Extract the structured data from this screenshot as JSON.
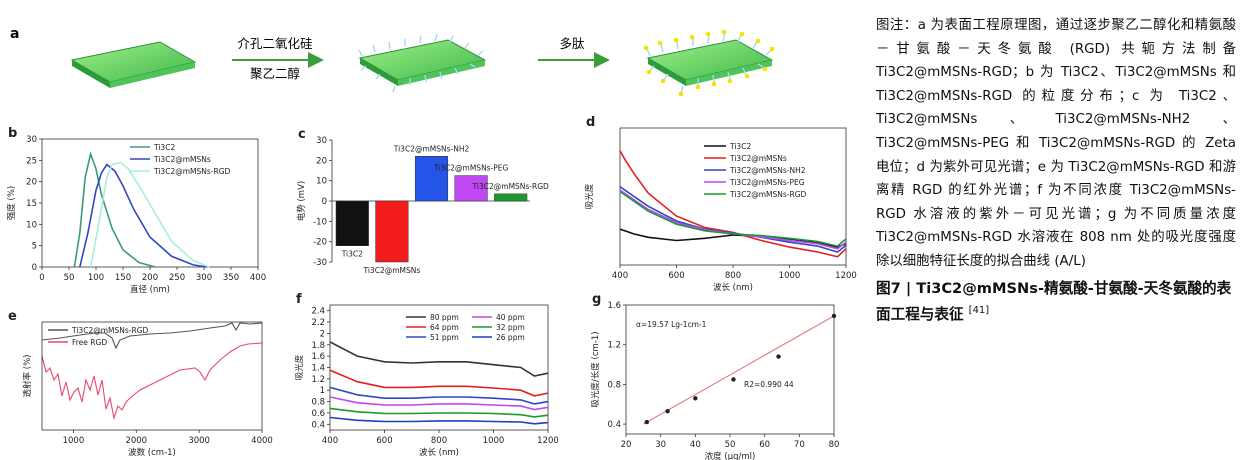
{
  "panel_a": {
    "letter": "a",
    "step1_top": "介孔二氧化硅",
    "step1_bottom": "聚乙二醇",
    "step2_top": "多肽"
  },
  "chart_data": [
    {
      "id": "b",
      "type": "line",
      "letter": "b",
      "xlabel": "直径 (nm)",
      "ylabel": "强度 (%)",
      "xlim": [
        0,
        400
      ],
      "ylim": [
        0,
        30
      ],
      "xticks": [
        0,
        50,
        100,
        150,
        200,
        250,
        300,
        350,
        400
      ],
      "yticks": [
        0,
        5,
        10,
        15,
        20,
        25,
        30
      ],
      "legend_position": "top-right",
      "series": [
        {
          "name": "Ti3C2",
          "color": "#3a9b7a",
          "x": [
            60,
            70,
            80,
            90,
            100,
            110,
            130,
            150,
            180,
            210
          ],
          "y": [
            0,
            8,
            21,
            26.5,
            23,
            17,
            9,
            4,
            1,
            0
          ]
        },
        {
          "name": "Ti3C2@mMSNs",
          "color": "#3045c8",
          "x": [
            70,
            85,
            100,
            110,
            120,
            135,
            150,
            170,
            200,
            240,
            280,
            305
          ],
          "y": [
            0,
            8,
            18,
            22,
            24,
            22.5,
            19,
            13.5,
            7,
            2.5,
            0.5,
            0
          ]
        },
        {
          "name": "Ti3C2@mMSNs-RGD",
          "color": "#a8eed8",
          "x": [
            90,
            105,
            120,
            130,
            145,
            160,
            180,
            210,
            240,
            280,
            310
          ],
          "y": [
            0,
            10,
            21,
            24,
            24.5,
            23,
            19,
            12.5,
            6,
            1.5,
            0
          ]
        }
      ]
    },
    {
      "id": "c",
      "type": "bar",
      "letter": "c",
      "ylabel": "电势 (mV)",
      "ylim": [
        -30,
        30
      ],
      "yticks": [
        -30,
        -20,
        -10,
        0,
        10,
        20,
        30
      ],
      "categories": [
        "Ti3C2",
        "Ti3C2@mMSNs",
        "Ti3C2@mMSNs-NH2",
        "Ti3C2@mMSNs-PEG",
        "Ti3C2@mMSNs-RGD"
      ],
      "values": [
        -22,
        -30,
        22,
        12.5,
        3.5
      ],
      "colors": [
        "#111111",
        "#f21c1c",
        "#2454e8",
        "#c048f2",
        "#1c9a2e"
      ]
    },
    {
      "id": "d",
      "type": "line",
      "letter": "d",
      "xlabel": "波长 (nm)",
      "ylabel": "吸光度",
      "xlim": [
        400,
        1200
      ],
      "xticks": [
        400,
        600,
        800,
        1000,
        1200
      ],
      "legend_position": "top-right",
      "series": [
        {
          "name": "Ti3C2",
          "color": "#111111",
          "x": [
            400,
            450,
            500,
            600,
            700,
            800,
            900,
            1000,
            1100,
            1170,
            1200
          ],
          "y": [
            1.9,
            1.75,
            1.65,
            1.55,
            1.62,
            1.72,
            1.68,
            1.6,
            1.5,
            1.35,
            1.45
          ]
        },
        {
          "name": "Ti3C2@mMSNs",
          "color": "#e02020",
          "x": [
            400,
            420,
            450,
            500,
            600,
            700,
            800,
            900,
            1000,
            1100,
            1170,
            1200
          ],
          "y": [
            4.3,
            4.0,
            3.6,
            3.0,
            2.3,
            1.95,
            1.8,
            1.55,
            1.35,
            1.2,
            1.05,
            1.3
          ]
        },
        {
          "name": "Ti3C2@mMSNs-NH2",
          "color": "#3045c8",
          "x": [
            400,
            450,
            500,
            600,
            700,
            800,
            900,
            1000,
            1100,
            1170,
            1200
          ],
          "y": [
            3.2,
            2.9,
            2.6,
            2.15,
            1.9,
            1.78,
            1.65,
            1.5,
            1.38,
            1.2,
            1.4
          ]
        },
        {
          "name": "Ti3C2@mMSNs-PEG",
          "color": "#c048f2",
          "x": [
            400,
            450,
            500,
            600,
            700,
            800,
            900,
            1000,
            1100,
            1170,
            1200
          ],
          "y": [
            3.1,
            2.8,
            2.5,
            2.1,
            1.88,
            1.76,
            1.66,
            1.55,
            1.45,
            1.3,
            1.5
          ]
        },
        {
          "name": "Ti3C2@mMSNs-RGD",
          "color": "#1c9a2e",
          "x": [
            400,
            450,
            500,
            600,
            700,
            800,
            900,
            1000,
            1100,
            1170,
            1200
          ],
          "y": [
            3.05,
            2.75,
            2.45,
            2.05,
            1.85,
            1.75,
            1.7,
            1.62,
            1.52,
            1.38,
            1.6
          ]
        }
      ]
    },
    {
      "id": "e",
      "type": "line",
      "letter": "e",
      "xlabel": "波数 (cm-1)",
      "ylabel": "透射率 (%)",
      "xticks": [
        1000,
        2000,
        3000,
        4000
      ],
      "legend_position": "top-left",
      "series": [
        {
          "name": "Ti3C2@mMSNs-RGD",
          "color": "#555555"
        },
        {
          "name": "Free RGD",
          "color": "#e8486a"
        }
      ]
    },
    {
      "id": "f",
      "type": "line",
      "letter": "f",
      "xlabel": "波长 (nm)",
      "ylabel": "吸光度",
      "xlim": [
        400,
        1200
      ],
      "ylim": [
        0.3,
        2.5
      ],
      "xticks": [
        400,
        600,
        800,
        1000,
        1200
      ],
      "yticks": [
        0.4,
        0.6,
        0.8,
        1.0,
        1.2,
        1.4,
        1.6,
        1.8,
        2.0,
        2.2,
        2.4
      ],
      "legend_position": "top-right",
      "series": [
        {
          "name": "80 ppm",
          "color": "#333333",
          "x": [
            400,
            500,
            600,
            700,
            800,
            900,
            1000,
            1100,
            1150,
            1200
          ],
          "y": [
            1.85,
            1.6,
            1.5,
            1.48,
            1.5,
            1.5,
            1.45,
            1.4,
            1.25,
            1.3
          ]
        },
        {
          "name": "64 ppm",
          "color": "#e02020",
          "x": [
            400,
            500,
            600,
            700,
            800,
            900,
            1000,
            1100,
            1150,
            1200
          ],
          "y": [
            1.35,
            1.15,
            1.05,
            1.05,
            1.07,
            1.07,
            1.04,
            1.0,
            0.9,
            0.95
          ]
        },
        {
          "name": "51 ppm",
          "color": "#3045c8",
          "x": [
            400,
            500,
            600,
            700,
            800,
            900,
            1000,
            1100,
            1150,
            1200
          ],
          "y": [
            1.05,
            0.92,
            0.86,
            0.86,
            0.88,
            0.88,
            0.86,
            0.83,
            0.76,
            0.8
          ]
        },
        {
          "name": "40 ppm",
          "color": "#c048f2",
          "x": [
            400,
            500,
            600,
            700,
            800,
            900,
            1000,
            1100,
            1150,
            1200
          ],
          "y": [
            0.88,
            0.78,
            0.74,
            0.74,
            0.76,
            0.76,
            0.74,
            0.72,
            0.66,
            0.7
          ]
        },
        {
          "name": "32 ppm",
          "color": "#1c9a2e",
          "x": [
            400,
            500,
            600,
            700,
            800,
            900,
            1000,
            1100,
            1150,
            1200
          ],
          "y": [
            0.68,
            0.62,
            0.59,
            0.59,
            0.6,
            0.6,
            0.59,
            0.57,
            0.53,
            0.56
          ]
        },
        {
          "name": "26 ppm",
          "color": "#1f3fbf",
          "x": [
            400,
            500,
            600,
            700,
            800,
            900,
            1000,
            1100,
            1150,
            1200
          ],
          "y": [
            0.52,
            0.47,
            0.45,
            0.45,
            0.46,
            0.46,
            0.45,
            0.44,
            0.41,
            0.43
          ]
        }
      ]
    },
    {
      "id": "g",
      "type": "scatter",
      "letter": "g",
      "xlabel": "浓度 (μg/ml)",
      "ylabel": "吸光度/长度 (cm-1)",
      "xlim": [
        20,
        80
      ],
      "ylim": [
        0.3,
        1.6
      ],
      "xticks": [
        20,
        30,
        40,
        50,
        60,
        70,
        80
      ],
      "yticks": [
        0.4,
        0.8,
        1.2,
        1.6
      ],
      "annotation_alpha": "α=19.57 Lg-1cm-1",
      "annotation_r2": "R2=0.990 44",
      "points": [
        {
          "x": 26,
          "y": 0.42
        },
        {
          "x": 32,
          "y": 0.53
        },
        {
          "x": 40,
          "y": 0.66
        },
        {
          "x": 51,
          "y": 0.85
        },
        {
          "x": 64,
          "y": 1.08
        },
        {
          "x": 80,
          "y": 1.49
        }
      ],
      "fit": {
        "x": [
          25,
          80
        ],
        "y": [
          0.4,
          1.49
        ],
        "color": "#e07070"
      }
    }
  ],
  "caption": {
    "body": "图注：a 为表面工程原理图，通过逐步聚乙二醇化和精氨酸－甘氨酸－天冬氨酸 (RGD) 共轭方法制备 Ti3C2@mMSNs-RGD；b 为 Ti3C2、Ti3C2@mMSNs 和 Ti3C2@mMSNs-RGD 的粒度分布；c 为 Ti3C2、Ti3C2@mMSNs、Ti3C2@mMSNs-NH2、Ti3C2@mMSNs-PEG 和 Ti3C2@mMSNs-RGD 的 Zeta 电位；d 为紫外可见光谱；e 为 Ti3C2@mMSNs-RGD 和游离精 RGD 的红外光谱；f 为不同浓度 Ti3C2@mMSNs-RGD 水溶液的紫外－可见光谱；g 为不同质量浓度 Ti3C2@mMSNs-RGD 水溶液在 808 nm 处的吸光度强度除以细胞特征长度的拟合曲线 (A/L)",
    "title": "图7 | Ti3C2@mMSNs-精氨酸-甘氨酸-天冬氨酸的表面工程与表征",
    "ref": "[41]"
  }
}
